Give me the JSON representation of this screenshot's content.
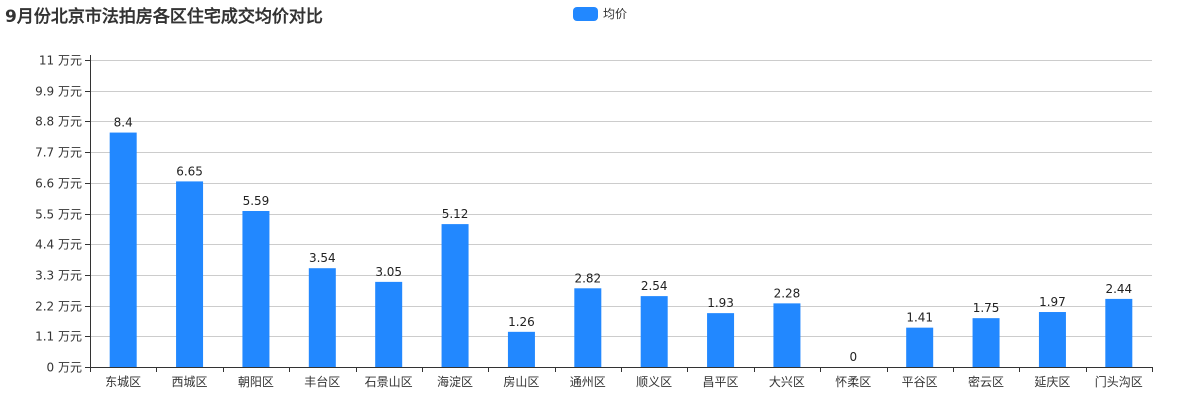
{
  "chart_data": {
    "type": "bar",
    "title": "9月份北京市法拍房各区住宅成交均价对比",
    "legend": [
      "均价"
    ],
    "legend_position": "top-center",
    "categories": [
      "东城区",
      "西城区",
      "朝阳区",
      "丰台区",
      "石景山区",
      "海淀区",
      "房山区",
      "通州区",
      "顺义区",
      "昌平区",
      "大兴区",
      "怀柔区",
      "平谷区",
      "密云区",
      "延庆区",
      "门头沟区"
    ],
    "series": [
      {
        "name": "均价",
        "values": [
          8.4,
          6.65,
          5.59,
          3.54,
          3.05,
          5.12,
          1.26,
          2.82,
          2.54,
          1.93,
          2.28,
          0,
          1.41,
          1.75,
          1.97,
          2.44
        ]
      }
    ],
    "ylim": [
      0,
      11
    ],
    "yticks": [
      0,
      1.1,
      2.2,
      3.3,
      4.4,
      5.5,
      6.6,
      7.7,
      8.8,
      9.9,
      11
    ],
    "ytick_suffix": " 万元",
    "grid": true,
    "color": "#2288FF"
  }
}
